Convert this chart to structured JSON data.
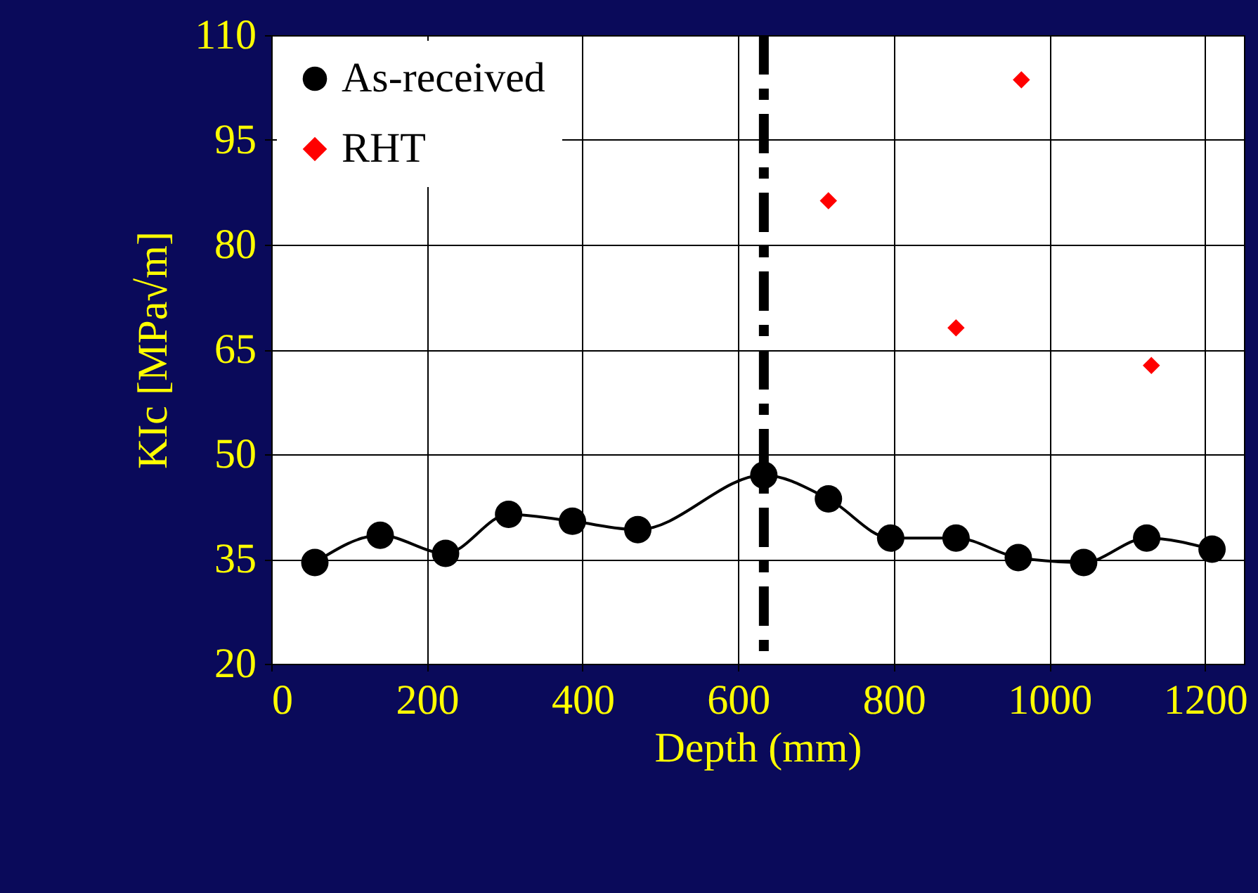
{
  "chart_data": {
    "type": "line",
    "xlabel": "Depth (mm)",
    "ylabel": "KIc [MPa√m]",
    "xlim": [
      0,
      1250
    ],
    "xticks": [
      0,
      200,
      400,
      600,
      800,
      1000,
      1200
    ],
    "ylim": [
      20,
      110
    ],
    "yticks": [
      20,
      35,
      50,
      65,
      80,
      95,
      110
    ],
    "grid": true,
    "legend": "top left",
    "series": [
      {
        "name": "As-received",
        "type": "line",
        "marker": "circle",
        "color": "#000000",
        "x": [
          56,
          140,
          224,
          305,
          387,
          471,
          633,
          716,
          796,
          880,
          960,
          1044,
          1125,
          1209
        ],
        "values": [
          34.5,
          38.4,
          35.8,
          41.4,
          40.4,
          39.2,
          47.0,
          43.6,
          38.0,
          38.0,
          35.2,
          34.5,
          38.0,
          36.4
        ]
      },
      {
        "name": "RHT",
        "type": "scatter",
        "marker": "diamond",
        "color": "#ff0000",
        "x": [
          716,
          880,
          964,
          1131
        ],
        "values": [
          86.3,
          68.1,
          103.6,
          62.7
        ]
      }
    ],
    "ref_lines": [
      {
        "axis": "x",
        "value": 633,
        "color": "#000000",
        "line_style": "dashed"
      }
    ]
  }
}
